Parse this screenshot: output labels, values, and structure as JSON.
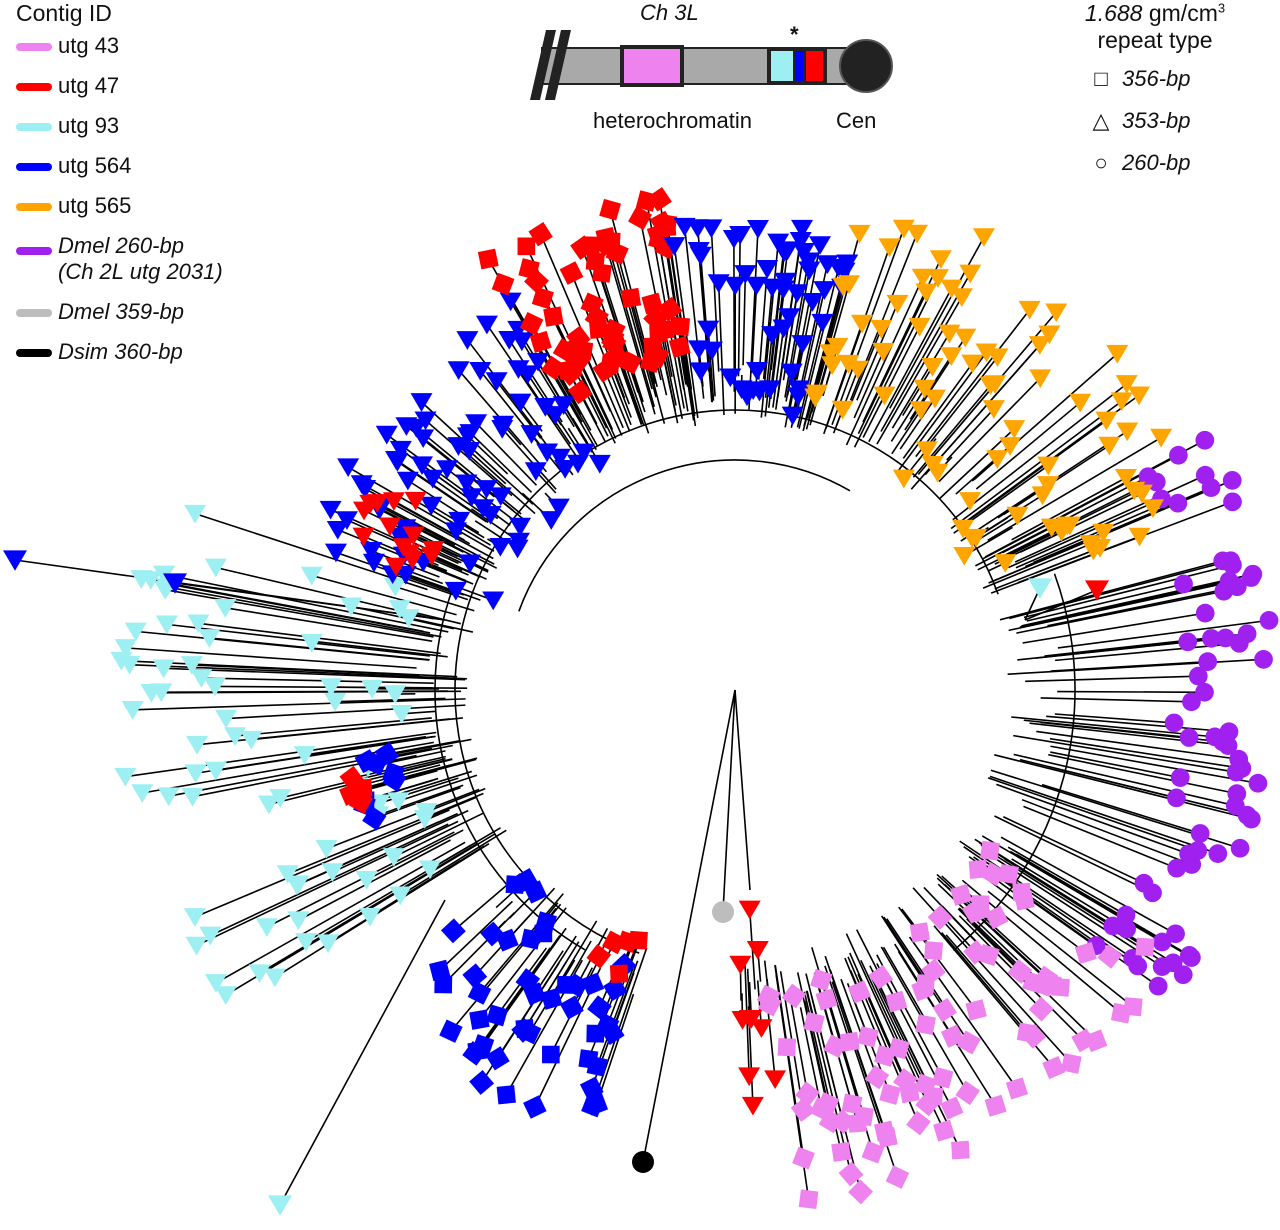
{
  "legend": {
    "title": "Contig ID",
    "items": [
      {
        "label": "utg 43",
        "color": "#ee82ee"
      },
      {
        "label": "utg 47",
        "color": "#ff0000"
      },
      {
        "label": "utg 93",
        "color": "#9deff2"
      },
      {
        "label": "utg 564",
        "color": "#0000ff"
      },
      {
        "label": "utg 565",
        "color": "#ffa500"
      },
      {
        "label": "Dmel 260-bp",
        "label2": "(Ch 2L utg 2031)",
        "color": "#a020f0"
      },
      {
        "label": "Dmel 359-bp",
        "color": "#bdbdbd"
      },
      {
        "label": "Dsim 360-bp",
        "color": "#000000"
      }
    ]
  },
  "chromosome": {
    "title": "Ch 3L",
    "heterochromatin_label": "heterochromatin",
    "centromere_label": "Cen",
    "asterisk": "*"
  },
  "repeat_type": {
    "density": "1.688",
    "unit": "gm/cm",
    "unit_sup": "3",
    "title": "repeat type",
    "items": [
      {
        "shape": "square",
        "symbol": "□",
        "label": "356-bp"
      },
      {
        "shape": "triangle",
        "symbol": "△",
        "label": "353-bp"
      },
      {
        "shape": "circle",
        "symbol": "○",
        "label": "260-bp"
      }
    ]
  }
}
